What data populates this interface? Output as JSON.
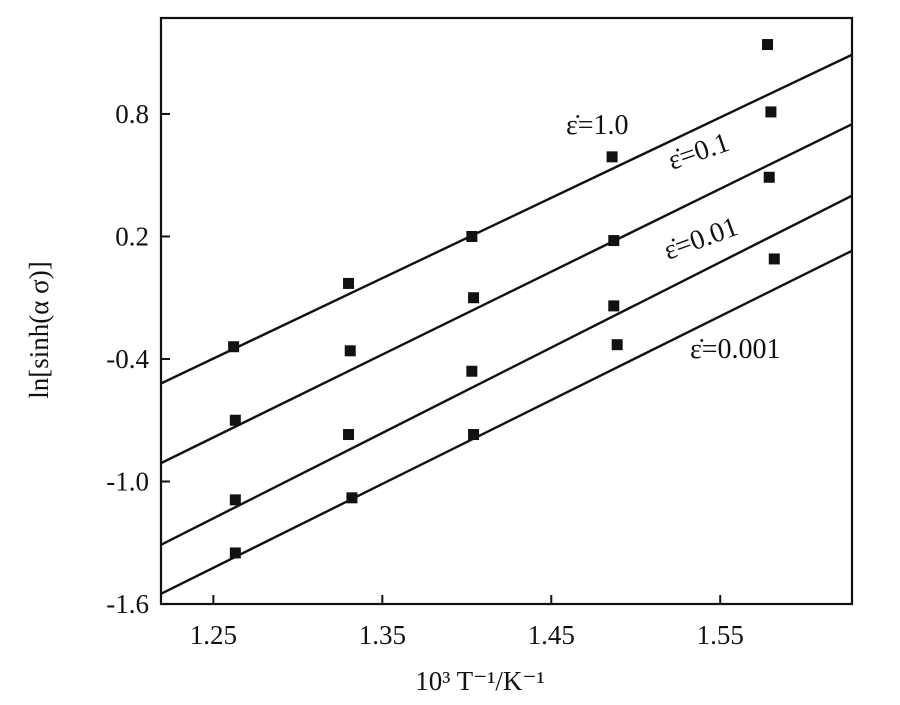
{
  "chart_data": {
    "type": "scatter",
    "title": "",
    "xlabel": "10³ T⁻¹/K⁻¹",
    "ylabel": "ln[sinh(α σ)]",
    "xlim": [
      1.219,
      1.628
    ],
    "ylim": [
      -1.6,
      1.27
    ],
    "x_ticks": [
      1.25,
      1.35,
      1.45,
      1.55
    ],
    "x_tick_labels": [
      "1.25",
      "1.35",
      "1.45",
      "1.55"
    ],
    "y_ticks": [
      0.8,
      0.2,
      -0.4,
      -1.0,
      -1.6
    ],
    "y_tick_labels": [
      "0.8",
      "0.2",
      "-0.4",
      "-1.0",
      "-1.6"
    ],
    "grid": false,
    "legend": "none",
    "series": [
      {
        "label": "ε̇=1.0",
        "points": [
          [
            1.262,
            -0.34
          ],
          [
            1.33,
            -0.03
          ],
          [
            1.403,
            0.2
          ],
          [
            1.486,
            0.59
          ],
          [
            1.578,
            1.14
          ]
        ],
        "fit": [
          [
            1.219,
            -0.52
          ],
          [
            1.628,
            1.09
          ]
        ]
      },
      {
        "label": "ε̇=0.1",
        "points": [
          [
            1.263,
            -0.7
          ],
          [
            1.331,
            -0.36
          ],
          [
            1.404,
            -0.1
          ],
          [
            1.487,
            0.18
          ],
          [
            1.58,
            0.81
          ]
        ],
        "fit": [
          [
            1.219,
            -0.91
          ],
          [
            1.628,
            0.75
          ]
        ]
      },
      {
        "label": "ε̇=0.01",
        "points": [
          [
            1.263,
            -1.09
          ],
          [
            1.33,
            -0.77
          ],
          [
            1.403,
            -0.46
          ],
          [
            1.487,
            -0.14
          ],
          [
            1.579,
            0.49
          ]
        ],
        "fit": [
          [
            1.219,
            -1.31
          ],
          [
            1.628,
            0.4
          ]
        ]
      },
      {
        "label": "ε̇=0.001",
        "points": [
          [
            1.263,
            -1.35
          ],
          [
            1.332,
            -1.08
          ],
          [
            1.404,
            -0.77
          ],
          [
            1.489,
            -0.33
          ],
          [
            1.582,
            0.09
          ]
        ],
        "fit": [
          [
            1.219,
            -1.55
          ],
          [
            1.628,
            0.13
          ]
        ]
      }
    ]
  }
}
